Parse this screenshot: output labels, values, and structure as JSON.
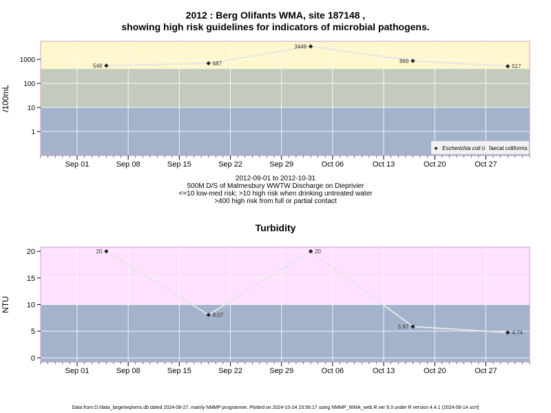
{
  "page": {
    "title_line1": "2012 : Berg Olifants WMA, site 187148 ,",
    "title_line2": "showing high risk guidelines for indicators of microbial pathogens.",
    "caption_lines": [
      "2012-09-01 to 2012-10-31",
      "500M D/S of Malmesbury WWTW Discharge on Dieprivier",
      "<=10 low-med risk; >10 high risk when drinking untreated water",
      ">400 high risk from full or partial contact"
    ],
    "footer": "Data from D:/data_large/wq/wms.db dated 2024-08-27, mainly NMMP programme. Plotted on 2024-10-24 23:56:17 using NMMP_WMA_web.R ver 9.3 under R version 4.4.1 (2024-06-14 ucrt)"
  },
  "chart_data": [
    {
      "type": "line",
      "title": "",
      "ylabel": "/100mL",
      "yscale": "log",
      "xlim": [
        "2012-08-27",
        "2012-11-02"
      ],
      "ylim_log10": [
        -1,
        3.75
      ],
      "x_tick_labels": [
        "Sep 01",
        "Sep 08",
        "Sep 15",
        "Sep 22",
        "Sep 29",
        "Oct 06",
        "Oct 13",
        "Oct 20",
        "Oct 27"
      ],
      "x_tick_dates": [
        "2012-09-01",
        "2012-09-08",
        "2012-09-15",
        "2012-09-22",
        "2012-09-29",
        "2012-10-06",
        "2012-10-13",
        "2012-10-20",
        "2012-10-27"
      ],
      "y_ticks": [
        1,
        10,
        100,
        1000
      ],
      "y_tick_labels": [
        "1",
        "10",
        "100",
        "1000"
      ],
      "bands": [
        {
          "from": 0.1,
          "to": 10,
          "color": "#a2b3cb"
        },
        {
          "from": 10,
          "to": 400,
          "color": "#c3cbbe"
        },
        {
          "from": 400,
          "to": 5623,
          "color": "#fff7cd"
        }
      ],
      "series": [
        {
          "name": "Escherichia coli",
          "x": [
            "2012-09-05",
            "2012-09-19",
            "2012-10-03",
            "2012-10-17",
            "2012-10-30"
          ],
          "y": [
            548,
            687,
            3448,
            866,
            517
          ],
          "labels": [
            "548",
            "687",
            "3448",
            "866",
            "517"
          ]
        },
        {
          "name": "faecal coliforms",
          "x": [],
          "y": [],
          "labels": []
        }
      ],
      "legend": {
        "position": "bottom-right",
        "entries": [
          "Escherichia coli",
          "faecal coliforms"
        ]
      },
      "grid": true
    },
    {
      "type": "line",
      "title": "Turbidity",
      "ylabel": "NTU",
      "yscale": "linear",
      "xlim": [
        "2012-08-27",
        "2012-11-02"
      ],
      "ylim": [
        -0.8,
        20.8
      ],
      "x_tick_labels": [
        "Sep 01",
        "Sep 08",
        "Sep 15",
        "Sep 22",
        "Sep 29",
        "Oct 06",
        "Oct 13",
        "Oct 20",
        "Oct 27"
      ],
      "x_tick_dates": [
        "2012-09-01",
        "2012-09-08",
        "2012-09-15",
        "2012-09-22",
        "2012-09-29",
        "2012-10-06",
        "2012-10-13",
        "2012-10-20",
        "2012-10-27"
      ],
      "y_ticks": [
        0,
        5,
        10,
        15,
        20
      ],
      "y_tick_labels": [
        "0",
        "5",
        "10",
        "15",
        "20"
      ],
      "bands": [
        {
          "from": -0.8,
          "to": 10,
          "color": "#a2b3cb"
        },
        {
          "from": 10,
          "to": 20.8,
          "color": "#ffe0ff"
        }
      ],
      "series": [
        {
          "name": "Turbidity",
          "x": [
            "2012-09-05",
            "2012-09-19",
            "2012-10-03",
            "2012-10-17",
            "2012-10-30"
          ],
          "y": [
            20,
            8.07,
            20,
            5.87,
            4.74
          ],
          "labels": [
            "20",
            "8.07",
            "20",
            "5.87",
            "4.74"
          ],
          "label_side": [
            "left",
            "right",
            "right",
            "left",
            "right"
          ]
        }
      ],
      "grid": true
    }
  ]
}
